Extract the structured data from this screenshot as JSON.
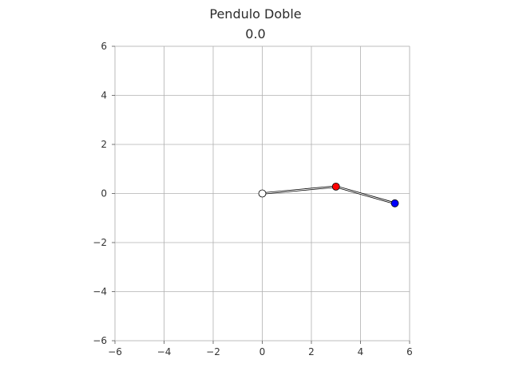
{
  "chart_data": {
    "type": "line",
    "title": "Pendulo Doble",
    "subtitle": "0.0",
    "xlim": [
      -6,
      6
    ],
    "ylim": [
      -6,
      6
    ],
    "x_ticks": [
      -6,
      -4,
      -2,
      0,
      2,
      4,
      6
    ],
    "y_ticks": [
      -6,
      -4,
      -2,
      0,
      2,
      4,
      6
    ],
    "x_tick_labels": [
      "−6",
      "−4",
      "−2",
      "0",
      "2",
      "4",
      "6"
    ],
    "y_tick_labels": [
      "−6",
      "−4",
      "−2",
      "0",
      "2",
      "4",
      "6"
    ],
    "grid": true,
    "series": [
      {
        "x": [
          0,
          3.0,
          5.4
        ],
        "y": [
          0,
          0.28,
          -0.4
        ]
      }
    ],
    "points": [
      {
        "x": 0,
        "y": 0,
        "color": "#ffffff"
      },
      {
        "x": 3.0,
        "y": 0.28,
        "color": "#ff0000"
      },
      {
        "x": 5.4,
        "y": -0.4,
        "color": "#0000ff"
      }
    ]
  }
}
